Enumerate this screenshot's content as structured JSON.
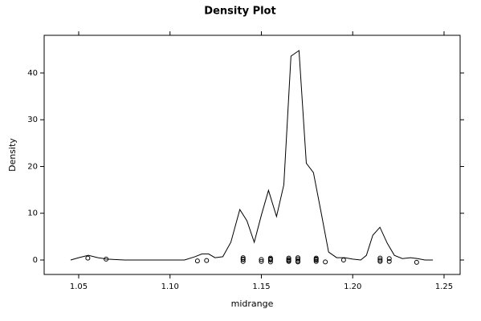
{
  "chart_data": {
    "type": "density",
    "title": "Density Plot",
    "x_label": "midrange",
    "y_label": "Density",
    "color": "#000000",
    "x": [
      1.0456,
      1.05,
      1.0553,
      1.0605,
      1.0654,
      1.075,
      1.1079,
      1.1136,
      1.1175,
      1.1211,
      1.1246,
      1.1289,
      1.1333,
      1.1382,
      1.1421,
      1.1461,
      1.15,
      1.1539,
      1.1583,
      1.1623,
      1.1662,
      1.1706,
      1.1746,
      1.1785,
      1.1825,
      1.1868,
      1.1912,
      1.1956,
      1.2,
      1.2044,
      1.2075,
      1.211,
      1.2149,
      1.2189,
      1.2228,
      1.2272,
      1.2316,
      1.2355,
      1.2395,
      1.2439
    ],
    "values": [
      0,
      0.5,
      1.0,
      0.5,
      0.2,
      0,
      0,
      0.7,
      1.3,
      1.3,
      0.5,
      0.7,
      3.8,
      10.8,
      8.4,
      3.8,
      9.6,
      14.9,
      9.3,
      16.1,
      43.6,
      44.8,
      20.7,
      18.7,
      10.6,
      1.7,
      0.5,
      0.5,
      0.2,
      0,
      1.0,
      5.3,
      7.0,
      3.6,
      1.0,
      0.3,
      0.5,
      0.3,
      0,
      0
    ],
    "points": {
      "x": [
        1.055,
        1.065,
        1.115,
        1.12,
        1.14,
        1.14,
        1.14,
        1.14,
        1.15,
        1.15,
        1.155,
        1.155,
        1.155,
        1.155,
        1.165,
        1.165,
        1.165,
        1.165,
        1.17,
        1.17,
        1.17,
        1.17,
        1.18,
        1.18,
        1.18,
        1.18,
        1.185,
        1.195,
        1.215,
        1.215,
        1.215,
        1.22,
        1.22,
        1.235
      ],
      "y": [
        0.4,
        0.2,
        -0.2,
        -0.1,
        0.5,
        0.1,
        -0.3,
        0.2,
        0.1,
        -0.3,
        0.4,
        0,
        -0.4,
        0.2,
        0.4,
        0.1,
        -0.3,
        -0.1,
        0.5,
        0.2,
        -0.2,
        -0.4,
        0.4,
        0,
        -0.3,
        0.2,
        -0.4,
        0,
        0.4,
        0,
        -0.3,
        0.3,
        -0.3,
        -0.5
      ]
    },
    "xlim": [
      1.0311,
      1.2588
    ],
    "ylim": [
      -3.09,
      48.06
    ],
    "xticks": [
      {
        "value": 1.05,
        "label": "1.05"
      },
      {
        "value": 1.1,
        "label": "1.10"
      },
      {
        "value": 1.15,
        "label": "1.15"
      },
      {
        "value": 1.2,
        "label": "1.20"
      },
      {
        "value": 1.25,
        "label": "1.25"
      }
    ],
    "yticks": [
      0,
      10,
      20,
      30,
      40
    ]
  }
}
